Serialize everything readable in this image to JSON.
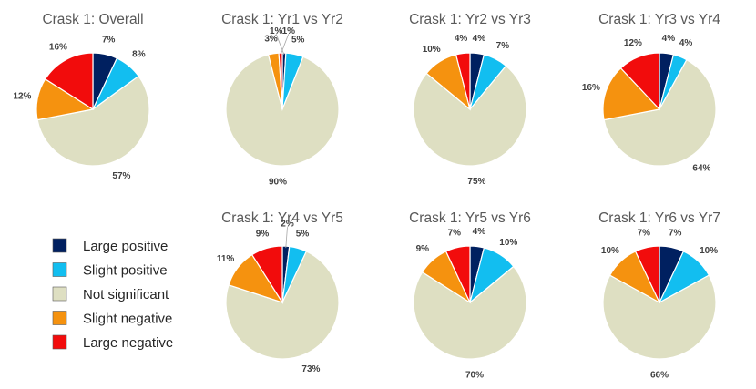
{
  "chart_data": {
    "type": "pie",
    "categories": [
      "Large positive",
      "Slight positive",
      "Not significant",
      "Slight negative",
      "Large negative"
    ],
    "colors": [
      "#002060",
      "#12BEF0",
      "#DEDFC2",
      "#F5920F",
      "#F20C0C"
    ],
    "legend_position": "bottom-left",
    "charts": [
      {
        "title": "Crask 1: Overall",
        "values": [
          7,
          8,
          57,
          12,
          16
        ],
        "labels": [
          "7%",
          "8%",
          "57%",
          "12%",
          "16%"
        ]
      },
      {
        "title": "Crask 1: Yr1 vs Yr2",
        "values": [
          1,
          5,
          90,
          3,
          1
        ],
        "labels": [
          "1%",
          "5%",
          "90%",
          "3%",
          "1%"
        ]
      },
      {
        "title": "Crask 1: Yr2 vs Yr3",
        "values": [
          4,
          7,
          75,
          10,
          4
        ],
        "labels": [
          "4%",
          "7%",
          "75%",
          "10%",
          "4%"
        ]
      },
      {
        "title": "Crask 1: Yr3 vs Yr4",
        "values": [
          4,
          4,
          64,
          16,
          12
        ],
        "labels": [
          "4%",
          "4%",
          "64%",
          "16%",
          "12%"
        ]
      },
      {
        "title": "Crask 1: Yr4 vs Yr5",
        "values": [
          2,
          5,
          73,
          11,
          9
        ],
        "labels": [
          "2%",
          "5%",
          "73%",
          "11%",
          "9%"
        ]
      },
      {
        "title": "Crask 1: Yr5 vs Yr6",
        "values": [
          4,
          10,
          70,
          9,
          7
        ],
        "labels": [
          "4%",
          "10%",
          "70%",
          "9%",
          "7%"
        ]
      },
      {
        "title": "Crask 1: Yr6 vs Yr7",
        "values": [
          7,
          10,
          66,
          10,
          7
        ],
        "labels": [
          "7%",
          "10%",
          "66%",
          "10%",
          "7%"
        ]
      }
    ]
  }
}
